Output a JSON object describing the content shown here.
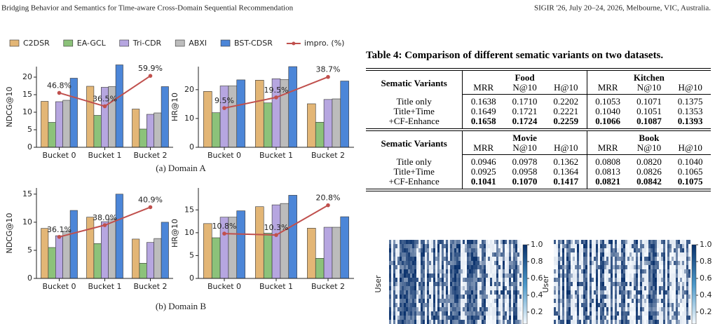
{
  "header": {
    "left": "Bridging Behavior and Semantics for Time-aware Cross-Domain Sequential Recommendation",
    "right": "SIGIR '26, July 20–24, 2026, Melbourne, VIC, Australia."
  },
  "legend": {
    "entries": [
      {
        "name": "C2DSR",
        "color": "#e3b676"
      },
      {
        "name": "EA-GCL",
        "color": "#8cc27a"
      },
      {
        "name": "Tri-CDR",
        "color": "#b6a6e0"
      },
      {
        "name": "ABXI",
        "color": "#bcbcbc"
      },
      {
        "name": "BST-CDSR",
        "color": "#4c86d8"
      },
      {
        "name": "impro. (%)",
        "color": "#c0504d",
        "style": "line"
      }
    ]
  },
  "captions": [
    "(a) Domain A",
    "(b) Domain B"
  ],
  "chart_data": [
    {
      "type": "bar",
      "ylabel": "NDCG@10",
      "categories": [
        "Bucket 0",
        "Bucket 1",
        "Bucket 2"
      ],
      "series": [
        {
          "values": [
            13.1,
            17.4,
            10.9
          ]
        },
        {
          "values": [
            7.1,
            9.1,
            5.2
          ]
        },
        {
          "values": [
            13.0,
            17.1,
            9.4
          ]
        },
        {
          "values": [
            13.4,
            17.3,
            9.8
          ]
        },
        {
          "values": [
            19.7,
            23.5,
            17.3
          ]
        },
        {
          "type": "line",
          "axis": "y2",
          "values": [
            46.8,
            36.5,
            59.9
          ],
          "value_labels": [
            "46.8%",
            "36.5%",
            "59.9%"
          ]
        }
      ],
      "ylim": [
        0,
        23
      ],
      "yticks": [
        0,
        5,
        10,
        15,
        20
      ],
      "y2lim": [
        5,
        67
      ]
    },
    {
      "type": "bar",
      "ylabel": "HR@10",
      "categories": [
        "Bucket 0",
        "Bucket 1",
        "Bucket 2"
      ],
      "series": [
        {
          "values": [
            19.4,
            23.3,
            15.1
          ]
        },
        {
          "values": [
            12.0,
            15.4,
            8.7
          ]
        },
        {
          "values": [
            21.3,
            23.8,
            16.6
          ]
        },
        {
          "values": [
            21.3,
            23.5,
            16.8
          ]
        },
        {
          "values": [
            23.4,
            28.0,
            23.0
          ]
        },
        {
          "type": "line",
          "axis": "y2",
          "values": [
            9.5,
            19.5,
            38.7
          ],
          "value_labels": [
            "9.5%",
            "19.5%",
            "38.7%"
          ]
        }
      ],
      "ylim": [
        0,
        28
      ],
      "yticks": [
        0,
        10,
        20
      ],
      "y2lim": [
        -27.3,
        48.4
      ]
    },
    {
      "type": "bar",
      "ylabel": "NDCG@10",
      "categories": [
        "Bucket 0",
        "Bucket 1",
        "Bucket 2"
      ],
      "series": [
        {
          "values": [
            8.9,
            10.9,
            7.0
          ]
        },
        {
          "values": [
            5.5,
            6.2,
            2.7
          ]
        },
        {
          "values": [
            7.6,
            10.1,
            6.4
          ]
        },
        {
          "values": [
            8.4,
            10.6,
            7.1
          ]
        },
        {
          "values": [
            12.1,
            15.0,
            10.0
          ]
        },
        {
          "type": "line",
          "axis": "y2",
          "values": [
            36.1,
            38.0,
            40.9
          ],
          "value_labels": [
            "36.1%",
            "38.0%",
            "40.9%"
          ]
        }
      ],
      "ylim": [
        0,
        16.1
      ],
      "yticks": [
        0,
        5,
        10,
        15
      ],
      "y2lim": [
        29.4,
        44
      ]
    },
    {
      "type": "bar",
      "ylabel": "HR@10",
      "categories": [
        "Bucket 0",
        "Bucket 1",
        "Bucket 2"
      ],
      "series": [
        {
          "values": [
            12.0,
            15.7,
            11.0
          ]
        },
        {
          "values": [
            8.9,
            9.9,
            4.4
          ]
        },
        {
          "values": [
            13.4,
            16.1,
            11.2
          ]
        },
        {
          "values": [
            13.4,
            16.4,
            11.2
          ]
        },
        {
          "values": [
            14.8,
            18.2,
            13.5
          ]
        },
        {
          "type": "line",
          "axis": "y2",
          "values": [
            10.8,
            10.3,
            20.8
          ],
          "value_labels": [
            "10.8%",
            "10.3%",
            "20.8%"
          ]
        }
      ],
      "ylim": [
        0,
        19.8
      ],
      "yticks": [
        0,
        5,
        10,
        15
      ],
      "y2lim": [
        -5,
        26.9
      ]
    }
  ],
  "table": {
    "caption": "Table 4: Comparison of different sematic variants on two datasets.",
    "blocks": [
      {
        "header": "Sematic Variants",
        "groups": [
          "Food",
          "Kitchen"
        ],
        "columns": [
          "MRR",
          "N@10",
          "H@10",
          "MRR",
          "N@10",
          "H@10"
        ],
        "rows": [
          [
            "Title only",
            "0.1638",
            "0.1710",
            "0.2202",
            "0.1053",
            "0.1071",
            "0.1375"
          ],
          [
            "Title+Time",
            "0.1649",
            "0.1721",
            "0.2221",
            "0.1040",
            "0.1051",
            "0.1353"
          ],
          [
            "+CF-Enhance",
            "0.1658",
            "0.1724",
            "0.2259",
            "0.1066",
            "0.1087",
            "0.1393"
          ]
        ]
      },
      {
        "header": "Sematic Variants",
        "groups": [
          "Movie",
          "Book"
        ],
        "columns": [
          "MRR",
          "N@10",
          "H@10",
          "MRR",
          "N@10",
          "H@10"
        ],
        "rows": [
          [
            "Title only",
            "0.0946",
            "0.0978",
            "0.1362",
            "0.0808",
            "0.0820",
            "0.1040"
          ],
          [
            "Title+Time",
            "0.0925",
            "0.0958",
            "0.1364",
            "0.0813",
            "0.0826",
            "0.1065"
          ],
          [
            "+CF-Enhance",
            "0.1041",
            "0.1070",
            "0.1417",
            "0.0821",
            "0.0842",
            "0.1075"
          ]
        ]
      }
    ]
  },
  "heatmaps": [
    {
      "ylabel": "User",
      "clim": [
        0,
        1
      ],
      "colorbar_ticks": [
        {
          "value": 1,
          "label": "1.0"
        },
        0.8,
        0.6,
        0.4,
        0.2
      ]
    },
    {
      "ylabel": "User",
      "clim": [
        0,
        1
      ],
      "colorbar_ticks": [
        {
          "value": 1,
          "label": "1.0"
        },
        0.8,
        0.6,
        0.4,
        0.2
      ]
    }
  ]
}
